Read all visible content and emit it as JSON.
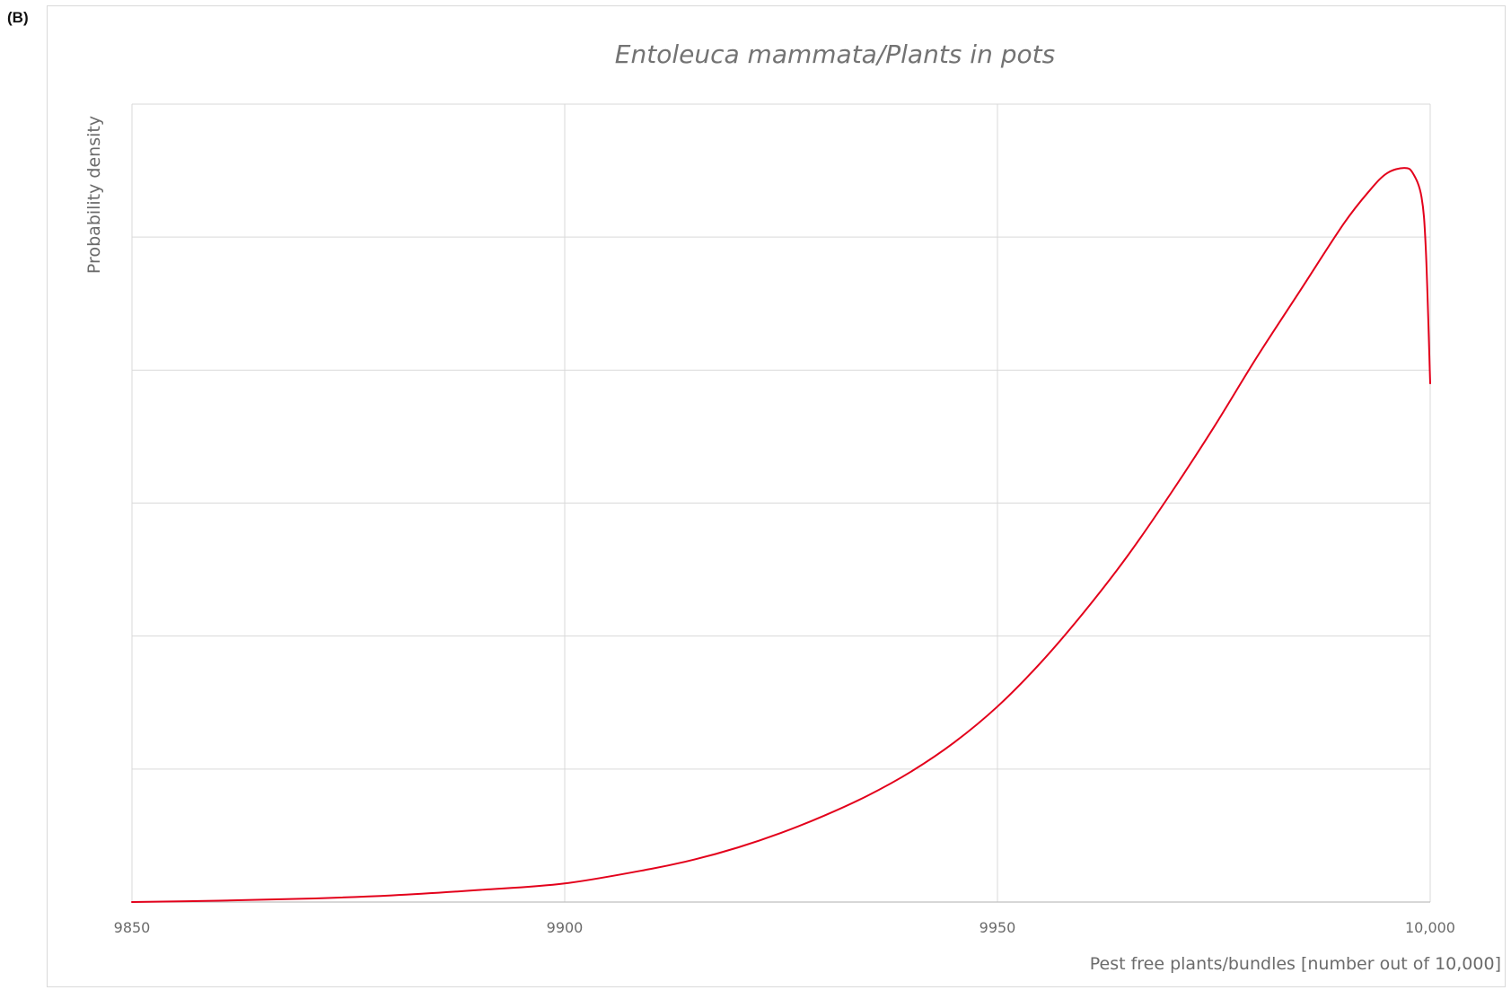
{
  "panel_label": "(B)",
  "chart_data": {
    "type": "line",
    "title": "Entoleuca mammata/Plants in pots",
    "xlabel": "Pest free plants/bundles [number out of 10,000]",
    "ylabel": "Probability density",
    "xlim": [
      9850,
      10000
    ],
    "ylim": [
      0,
      6
    ],
    "x_ticks": [
      9850,
      9900,
      9950,
      10000
    ],
    "x_tick_labels": [
      "9850",
      "9900",
      "9950",
      "10,000"
    ],
    "y_gridlines": [
      0,
      1,
      2,
      3,
      4,
      5,
      6
    ],
    "y_tick_labels_shown": false,
    "grid": true,
    "legend": false,
    "series": [
      {
        "color": "#e3001b",
        "x": [
          9850,
          9860,
          9870,
          9880,
          9890,
          9900,
          9910,
          9915,
          9920,
          9925,
          9930,
          9935,
          9940,
          9945,
          9950,
          9955,
          9960,
          9965,
          9970,
          9975,
          9980,
          9985,
          9990,
          9993,
          9995,
          9997,
          9998,
          9999,
          9999.5,
          10000
        ],
        "y": [
          0.0,
          0.01,
          0.025,
          0.05,
          0.09,
          0.14,
          0.25,
          0.32,
          0.41,
          0.52,
          0.65,
          0.8,
          0.98,
          1.2,
          1.47,
          1.8,
          2.18,
          2.6,
          3.07,
          3.57,
          4.1,
          4.6,
          5.1,
          5.35,
          5.48,
          5.52,
          5.48,
          5.3,
          4.9,
          3.9
        ]
      }
    ]
  }
}
